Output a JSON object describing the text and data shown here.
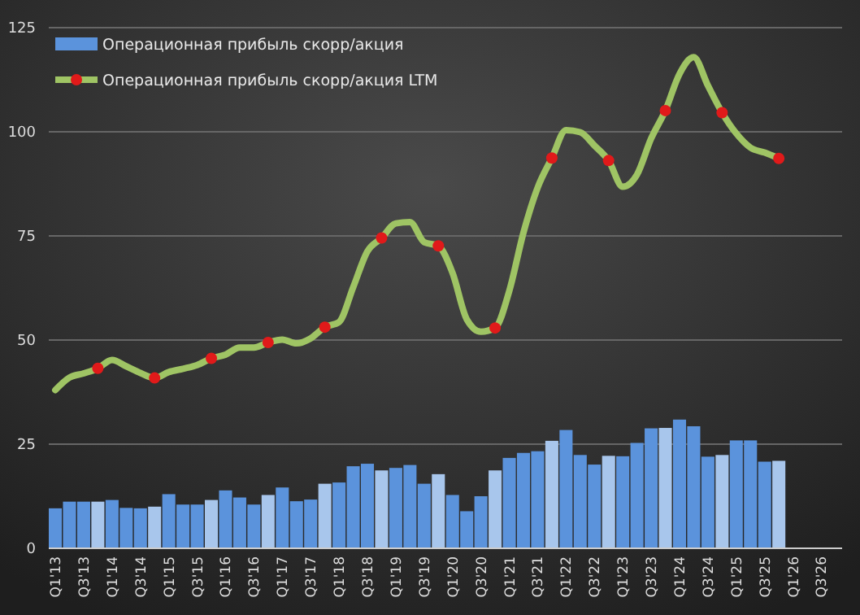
{
  "chart_data": {
    "type": "bar",
    "categories": [
      "Q1'13",
      null,
      "Q3'13",
      null,
      "Q1'14",
      null,
      "Q3'14",
      null,
      "Q1'15",
      null,
      "Q3'15",
      null,
      "Q1'16",
      null,
      "Q3'16",
      null,
      "Q1'17",
      null,
      "Q3'17",
      null,
      "Q1'18",
      null,
      "Q3'18",
      null,
      "Q1'19",
      null,
      "Q3'19",
      null,
      "Q1'20",
      null,
      "Q3'20",
      null,
      "Q1'21",
      null,
      "Q3'21",
      null,
      "Q1'22",
      null,
      "Q3'22",
      null,
      "Q1'23",
      null,
      "Q3'23",
      null,
      "Q1'24",
      null,
      "Q3'24",
      null,
      "Q1'25",
      null,
      "Q3'25",
      null,
      "Q1'26",
      null,
      "Q3'26",
      null
    ],
    "series": [
      {
        "name": "Операционная прибыль скорр/акция",
        "color": "#5b93dc",
        "colors": [
          "#5b93dc",
          "#5b93dc",
          "#5b93dc",
          "#a8c6ec",
          "#5b93dc",
          "#5b93dc",
          "#5b93dc",
          "#a8c6ec",
          "#5b93dc",
          "#5b93dc",
          "#5b93dc",
          "#a8c6ec",
          "#5b93dc",
          "#5b93dc",
          "#5b93dc",
          "#a8c6ec",
          "#5b93dc",
          "#5b93dc",
          "#5b93dc",
          "#a8c6ec",
          "#5b93dc",
          "#5b93dc",
          "#5b93dc",
          "#a8c6ec",
          "#5b93dc",
          "#5b93dc",
          "#5b93dc",
          "#a8c6ec",
          "#5b93dc",
          "#5b93dc",
          "#5b93dc",
          "#a8c6ec",
          "#5b93dc",
          "#5b93dc",
          "#5b93dc",
          "#a8c6ec",
          "#5b93dc",
          "#5b93dc",
          "#5b93dc",
          "#a8c6ec",
          "#5b93dc",
          "#5b93dc",
          "#5b93dc",
          "#a8c6ec",
          "#5b93dc",
          "#5b93dc",
          "#5b93dc",
          "#a8c6ec",
          "#5b93dc",
          "#5b93dc",
          "#5b93dc",
          "#a8c6ec",
          null,
          null,
          null,
          null
        ],
        "values": [
          9.6,
          11.2,
          11.2,
          11.2,
          11.6,
          9.7,
          9.6,
          10,
          13,
          10.5,
          10.5,
          11.6,
          13.9,
          12.2,
          10.5,
          12.8,
          14.6,
          11.3,
          11.7,
          15.5,
          15.8,
          19.7,
          20.3,
          18.7,
          19.3,
          20,
          15.5,
          17.8,
          12.8,
          8.9,
          12.5,
          18.7,
          21.7,
          22.9,
          23.3,
          25.8,
          28.4,
          22.4,
          20.1,
          22.2,
          22.1,
          25.3,
          28.8,
          28.9,
          30.9,
          29.3,
          22,
          22.4,
          25.9,
          25.9,
          20.8,
          21,
          null,
          null,
          null,
          null
        ]
      },
      {
        "type": "line",
        "name": "Операционная прибыль скорр/акция LTM",
        "color": "#9fc464",
        "values": [
          38,
          41,
          42,
          43.2,
          45.2,
          43.7,
          42.1,
          40.9,
          42.3,
          43.1,
          44,
          45.6,
          46.5,
          48.2,
          48.2,
          49.4,
          50.1,
          49.2,
          50.4,
          53.1,
          54.3,
          62.7,
          71.3,
          74.5,
          78,
          78.3,
          73.5,
          72.6,
          66.1,
          55,
          52,
          52.9,
          61.8,
          75.8,
          86.6,
          93.7,
          100.4,
          99.9,
          96.7,
          93.1,
          86.8,
          89.7,
          98.4,
          105.1,
          113.9,
          117.9,
          111.1,
          104.6,
          99.6,
          96.2,
          95,
          93.6,
          null,
          null,
          null,
          null
        ]
      },
      {
        "type": "scatter",
        "color": "#e01a1a",
        "marker": "circle",
        "values": [
          null,
          null,
          null,
          43.2,
          null,
          null,
          null,
          40.9,
          null,
          null,
          null,
          45.6,
          null,
          null,
          null,
          49.4,
          null,
          null,
          null,
          53.1,
          null,
          null,
          null,
          74.5,
          null,
          null,
          null,
          72.6,
          null,
          null,
          null,
          52.9,
          null,
          null,
          null,
          93.7,
          null,
          null,
          null,
          93.1,
          null,
          null,
          null,
          105.1,
          null,
          null,
          null,
          104.6,
          null,
          null,
          null,
          93.6,
          null,
          null,
          null,
          null
        ]
      }
    ],
    "ylim": [
      0,
      125
    ],
    "yticks": [
      0,
      25,
      50,
      75,
      100,
      125
    ],
    "grid": "y",
    "legend": "top left"
  }
}
